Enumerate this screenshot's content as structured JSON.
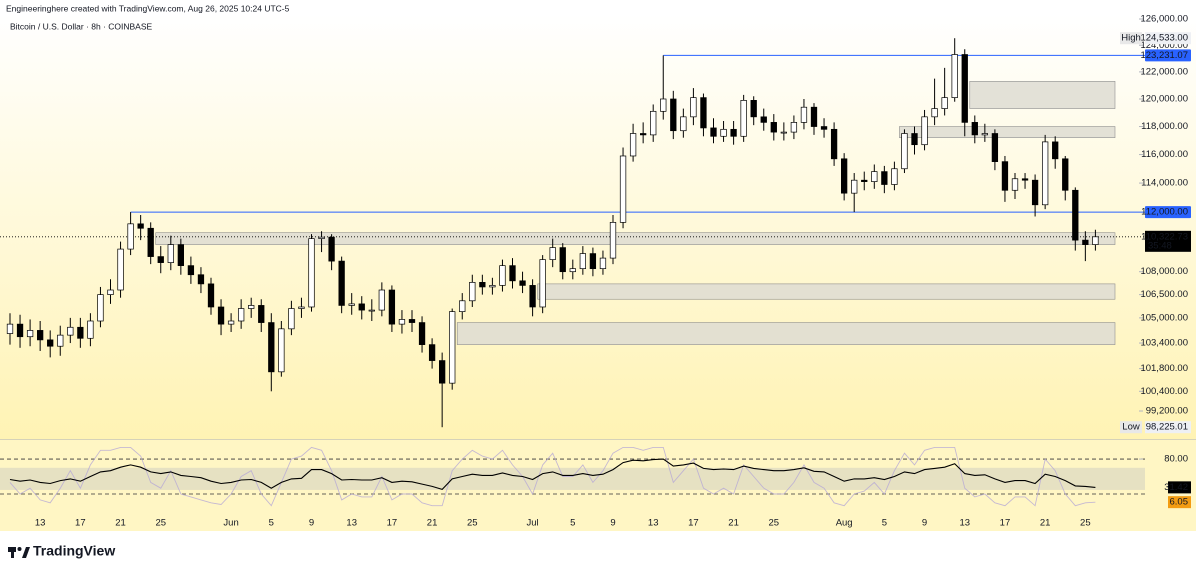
{
  "header": {
    "author_line": "Engineeringhere created with TradingView.com, Aug 26, 2025 10:24 UTC-5",
    "symbol_line": "Bitcoin / U.S. Dollar · 8h · COINBASE"
  },
  "footer": {
    "brand": "TradingView"
  },
  "chart_data": [
    {
      "type": "candlestick",
      "log_scale": true,
      "up_color": "#ffffff",
      "down_color": "#000000",
      "wick_color": "#000000",
      "categories": [
        null,
        null,
        null,
        "13",
        null,
        null,
        null,
        "17",
        null,
        null,
        null,
        "21",
        null,
        null,
        null,
        "25",
        null,
        null,
        null,
        null,
        null,
        null,
        "Jun",
        null,
        null,
        null,
        "5",
        null,
        null,
        null,
        "9",
        null,
        null,
        null,
        "13",
        null,
        null,
        null,
        "17",
        null,
        null,
        null,
        "21",
        null,
        null,
        null,
        "25",
        null,
        null,
        null,
        null,
        null,
        "Jul",
        null,
        null,
        null,
        "5",
        null,
        null,
        null,
        "9",
        null,
        null,
        null,
        "13",
        null,
        null,
        null,
        "17",
        null,
        null,
        null,
        "21",
        null,
        null,
        null,
        "25",
        null,
        null,
        null,
        null,
        null,
        null,
        "Aug",
        null,
        null,
        null,
        "5",
        null,
        null,
        null,
        "9",
        null,
        null,
        null,
        "13",
        null,
        null,
        null,
        "17",
        null,
        null,
        null,
        "21",
        null,
        null,
        null,
        "25",
        null
      ],
      "open": [
        104000,
        104600,
        103800,
        104200,
        103600,
        103200,
        103900,
        104400,
        103700,
        104800,
        106500,
        106800,
        109500,
        111200,
        110900,
        109000,
        108600,
        109800,
        108400,
        107800,
        107200,
        105700,
        104600,
        104800,
        105600,
        105800,
        104700,
        101600,
        104300,
        105600,
        105700,
        110200,
        110300,
        108700,
        105800,
        105900,
        105500,
        105500,
        106800,
        104600,
        104900,
        104700,
        103300,
        102300,
        100900,
        105400,
        106100,
        107300,
        107000,
        107100,
        108400,
        107400,
        107100,
        105700,
        108800,
        109600,
        108000,
        108200,
        109200,
        108200,
        108900,
        111300,
        115900,
        117500,
        117400,
        119100,
        120000,
        117700,
        118700,
        120100,
        117900,
        117300,
        117800,
        117300,
        119900,
        118700,
        118300,
        117600,
        117600,
        118300,
        119400,
        118000,
        117800,
        115700,
        113300,
        114200,
        114100,
        114800,
        113900,
        115000,
        117500,
        116700,
        118700,
        119300,
        120100,
        123300,
        118300,
        117400,
        117500,
        115500,
        113500,
        114300,
        114200,
        112500,
        116900,
        115700,
        113500,
        110100,
        109800
      ],
      "high": [
        105300,
        105200,
        104900,
        104800,
        104200,
        104500,
        105000,
        105000,
        105300,
        107000,
        107500,
        110000,
        112000,
        111800,
        111300,
        109700,
        110400,
        110200,
        109000,
        108300,
        107600,
        106200,
        105300,
        106200,
        106300,
        106200,
        105300,
        104800,
        106100,
        106300,
        110500,
        110700,
        110500,
        109000,
        106600,
        106400,
        106200,
        107300,
        107100,
        105500,
        105500,
        105100,
        103700,
        102800,
        105600,
        106600,
        107800,
        107800,
        107600,
        108800,
        108900,
        108000,
        107500,
        109100,
        110200,
        109900,
        108800,
        109700,
        109600,
        109400,
        111800,
        116500,
        118200,
        118300,
        119600,
        123231.07,
        120600,
        119300,
        120800,
        120400,
        118600,
        118400,
        118400,
        120300,
        120200,
        119300,
        118900,
        118300,
        118800,
        120000,
        119700,
        118600,
        118300,
        116100,
        114700,
        114800,
        115300,
        115200,
        115500,
        117800,
        118000,
        119200,
        121500,
        122300,
        124533,
        123700,
        118800,
        118200,
        117800,
        115900,
        114700,
        114700,
        114600,
        117400,
        117300,
        115900,
        113700,
        110700,
        110800
      ],
      "low": [
        103300,
        103100,
        103200,
        102900,
        102500,
        102600,
        103400,
        103100,
        103200,
        104400,
        105900,
        106300,
        109100,
        110100,
        108500,
        107900,
        108100,
        107800,
        107200,
        106600,
        105200,
        103900,
        104100,
        104300,
        105000,
        104100,
        100400,
        101300,
        103900,
        105000,
        105400,
        109300,
        108100,
        105300,
        105200,
        104900,
        104800,
        105100,
        104100,
        104000,
        104100,
        102800,
        101800,
        98225.01,
        100500,
        104900,
        105700,
        106500,
        106500,
        106700,
        106900,
        106600,
        105100,
        105300,
        108300,
        107500,
        107500,
        107800,
        107700,
        107800,
        108500,
        110900,
        115500,
        116800,
        116900,
        118500,
        117100,
        117200,
        118100,
        117300,
        116800,
        116900,
        116700,
        116900,
        118100,
        117700,
        117000,
        117000,
        117100,
        117800,
        117400,
        117200,
        115200,
        112800,
        112000,
        113500,
        113600,
        113300,
        113500,
        114700,
        116000,
        116300,
        118100,
        118800,
        119800,
        117300,
        116800,
        116900,
        114900,
        112700,
        112900,
        113600,
        111700,
        112200,
        115000,
        112800,
        109400,
        108700,
        109400
      ],
      "close": [
        104600,
        103800,
        104200,
        103600,
        103200,
        103900,
        104400,
        103700,
        104800,
        106500,
        106800,
        109500,
        111200,
        110900,
        109000,
        108600,
        109800,
        108400,
        107800,
        107200,
        105700,
        104600,
        104800,
        105600,
        105800,
        104700,
        101600,
        104300,
        105600,
        105700,
        110200,
        110300,
        108700,
        105800,
        105900,
        105500,
        105500,
        106800,
        104600,
        104900,
        104700,
        103300,
        102300,
        100900,
        105400,
        106100,
        107300,
        107000,
        107100,
        108400,
        107400,
        107100,
        105700,
        108800,
        109600,
        108000,
        108200,
        109200,
        108200,
        108900,
        111300,
        115900,
        117500,
        117400,
        119100,
        120000,
        117700,
        118700,
        120100,
        117900,
        117300,
        117800,
        117300,
        119900,
        118700,
        118300,
        117600,
        117600,
        118300,
        119400,
        118000,
        117800,
        115700,
        113300,
        114200,
        114100,
        114800,
        113900,
        115000,
        117500,
        116700,
        118700,
        119300,
        120100,
        123300,
        118300,
        117400,
        117500,
        115500,
        113500,
        114300,
        114200,
        112500,
        116900,
        115700,
        113500,
        110100,
        109800,
        110322.73
      ],
      "ylim": [
        97640,
        126540
      ],
      "yticks": [
        {
          "value": 126000,
          "label": "126,000.00"
        },
        {
          "value": 124000,
          "label": "124,000.00"
        },
        {
          "value": 122000,
          "label": "122,000.00"
        },
        {
          "value": 120000,
          "label": "120,000.00"
        },
        {
          "value": 118000,
          "label": "118,000.00"
        },
        {
          "value": 116000,
          "label": "116,000.00"
        },
        {
          "value": 114000,
          "label": "114,000.00"
        },
        {
          "value": 108000,
          "label": "108,000.00"
        },
        {
          "value": 106500,
          "label": "106,500.00"
        },
        {
          "value": 105000,
          "label": "105,000.00"
        },
        {
          "value": 103400,
          "label": "103,400.00"
        },
        {
          "value": 101800,
          "label": "101,800.00"
        },
        {
          "value": 100400,
          "label": "100,400.00"
        },
        {
          "value": 99200,
          "label": "99,200.00"
        }
      ],
      "zones": [
        {
          "low": 119300,
          "high": 121300,
          "from": 96
        },
        {
          "low": 117200,
          "high": 118000,
          "from": 89
        },
        {
          "low": 109800,
          "high": 110600,
          "from": 15
        },
        {
          "low": 106200,
          "high": 107200,
          "from": 53
        },
        {
          "low": 103300,
          "high": 104700,
          "from": 45
        }
      ],
      "zone_color": "#dedcd2",
      "levels": [
        {
          "value": 123231.07,
          "label": "123,231.07"
        },
        {
          "value": 112000,
          "label": "112,000.00"
        }
      ],
      "level_color": "#2962ff",
      "extremes": [
        {
          "label": "High",
          "value": 124533,
          "value_label": "124,533.00"
        },
        {
          "label": "Low",
          "value": 98225.01,
          "value_label": "98,225.01"
        }
      ],
      "last": {
        "value": 110322.73,
        "label": "110,322.73",
        "countdown": "35:48"
      }
    },
    {
      "type": "line",
      "series": [
        {
          "color": "#000000",
          "values": [
            45,
            42,
            44,
            40,
            38,
            43,
            46,
            42,
            50,
            58,
            60,
            66,
            70,
            66,
            58,
            55,
            58,
            52,
            50,
            48,
            42,
            38,
            40,
            44,
            45,
            40,
            30,
            40,
            46,
            47,
            62,
            62,
            55,
            44,
            45,
            44,
            44,
            48,
            40,
            42,
            41,
            37,
            33,
            28,
            46,
            50,
            54,
            52,
            52,
            56,
            52,
            50,
            45,
            55,
            58,
            52,
            52,
            55,
            52,
            54,
            62,
            74,
            78,
            77,
            79,
            80,
            68,
            70,
            73,
            64,
            62,
            63,
            62,
            68,
            64,
            62,
            60,
            60,
            62,
            65,
            59,
            58,
            50,
            42,
            46,
            46,
            48,
            45,
            50,
            58,
            55,
            62,
            64,
            66,
            72,
            55,
            52,
            53,
            46,
            40,
            43,
            43,
            38,
            54,
            50,
            43,
            34,
            33,
            31.42
          ]
        },
        {
          "color": "#f39c12",
          "values": [
            40,
            20,
            30,
            10,
            5,
            30,
            60,
            30,
            70,
            95,
            95,
            100,
            100,
            85,
            40,
            30,
            60,
            20,
            15,
            10,
            5,
            2,
            20,
            50,
            60,
            20,
            0,
            40,
            80,
            85,
            100,
            95,
            60,
            10,
            20,
            15,
            15,
            50,
            10,
            20,
            20,
            5,
            0,
            0,
            60,
            80,
            95,
            85,
            80,
            95,
            70,
            50,
            20,
            70,
            90,
            50,
            50,
            70,
            40,
            60,
            90,
            100,
            100,
            95,
            100,
            100,
            40,
            60,
            80,
            30,
            20,
            30,
            20,
            70,
            50,
            30,
            20,
            20,
            40,
            70,
            40,
            30,
            5,
            0,
            20,
            25,
            40,
            20,
            60,
            90,
            70,
            95,
            100,
            100,
            100,
            30,
            15,
            20,
            5,
            0,
            15,
            15,
            0,
            80,
            60,
            20,
            0,
            5,
            6.05
          ]
        }
      ],
      "ylim": [
        -16,
        111
      ],
      "yticks": [
        {
          "value": 80,
          "label": "80.00"
        }
      ],
      "levels": [
        80,
        20
      ],
      "band": [
        27,
        65
      ]
    }
  ]
}
